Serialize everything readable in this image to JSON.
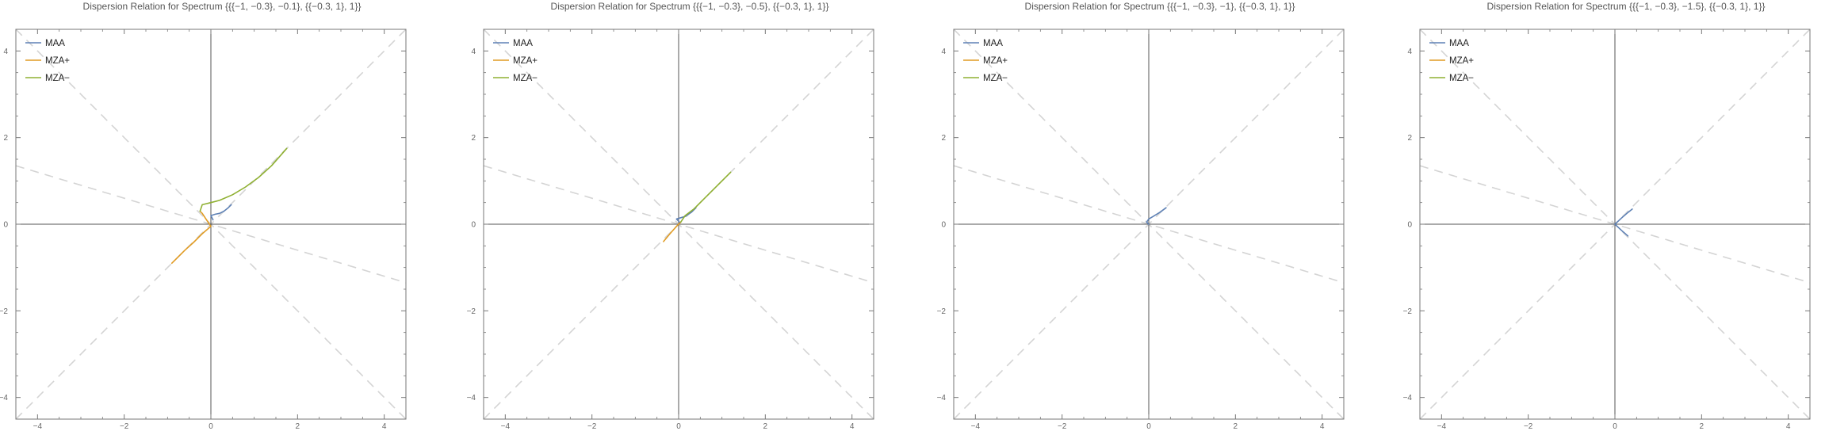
{
  "colors": {
    "MAA": "#5e81b5",
    "MZA+": "#e19c24",
    "MZA-": "#8fb032",
    "frame": "#777777",
    "axis": "#555555",
    "reference": "#d4d4d4"
  },
  "chart_data": [
    {
      "type": "line",
      "title": "Dispersion Relation for Spectrum {{{−1, −0.3}, −0.1}, {{−0.3, 1}, 1}}",
      "xlim": [
        -4.5,
        4.5
      ],
      "ylim": [
        -4.5,
        4.5
      ],
      "xticks": [
        -4,
        -2,
        0,
        2,
        4
      ],
      "yticks": [
        -4,
        -2,
        0,
        2,
        4
      ],
      "tick_labels": [
        "−4",
        "−2",
        "0",
        "2",
        "4"
      ],
      "grid": false,
      "legend_position": "top-left",
      "reference_lines": [
        {
          "style": "dashed",
          "slope": 1
        },
        {
          "style": "dashed",
          "slope": -1
        },
        {
          "style": "dashed",
          "slope": -0.3
        }
      ],
      "series": [
        {
          "name": "MAA",
          "color_key": "MAA",
          "points": [
            [
              0.05,
              0.1
            ],
            [
              0,
              0.2
            ],
            [
              0.1,
              0.23
            ],
            [
              0.2,
              0.25
            ],
            [
              0.3,
              0.3
            ],
            [
              0.4,
              0.38
            ],
            [
              0.47,
              0.45
            ]
          ]
        },
        {
          "name": "MZA+",
          "color_key": "MZA+",
          "points": [
            [
              -0.9,
              -0.9
            ],
            [
              -0.6,
              -0.6
            ],
            [
              -0.4,
              -0.42
            ],
            [
              -0.2,
              -0.22
            ],
            [
              0,
              -0.05
            ],
            [
              -0.1,
              0.1
            ],
            [
              -0.2,
              0.25
            ],
            [
              -0.25,
              0.3
            ]
          ]
        },
        {
          "name": "MZA−",
          "color_key": "MZA-",
          "points": [
            [
              -0.25,
              0.3
            ],
            [
              -0.2,
              0.45
            ],
            [
              0,
              0.5
            ],
            [
              0.2,
              0.55
            ],
            [
              0.5,
              0.68
            ],
            [
              0.8,
              0.86
            ],
            [
              1.1,
              1.08
            ],
            [
              1.4,
              1.35
            ],
            [
              1.75,
              1.75
            ]
          ]
        }
      ]
    },
    {
      "type": "line",
      "title": "Dispersion Relation for Spectrum {{{−1, −0.3}, −0.5}, {{−0.3, 1}, 1}}",
      "xlim": [
        -4.5,
        4.5
      ],
      "ylim": [
        -4.5,
        4.5
      ],
      "xticks": [
        -4,
        -2,
        0,
        2,
        4
      ],
      "yticks": [
        -4,
        -2,
        0,
        2,
        4
      ],
      "tick_labels": [
        "−4",
        "−2",
        "0",
        "2",
        "4"
      ],
      "grid": false,
      "legend_position": "top-left",
      "reference_lines": [
        {
          "style": "dashed",
          "slope": 1
        },
        {
          "style": "dashed",
          "slope": -1
        },
        {
          "style": "dashed",
          "slope": -0.3
        }
      ],
      "series": [
        {
          "name": "MAA",
          "color_key": "MAA",
          "points": [
            [
              0.02,
              0.05
            ],
            [
              -0.05,
              0.12
            ],
            [
              0.05,
              0.15
            ],
            [
              0.15,
              0.18
            ],
            [
              0.3,
              0.28
            ],
            [
              0.4,
              0.38
            ]
          ]
        },
        {
          "name": "MZA+",
          "color_key": "MZA+",
          "points": [
            [
              -0.35,
              -0.4
            ],
            [
              -0.2,
              -0.22
            ],
            [
              -0.05,
              -0.05
            ],
            [
              0.05,
              0.05
            ]
          ]
        },
        {
          "name": "MZA−",
          "color_key": "MZA-",
          "points": [
            [
              0.05,
              0.05
            ],
            [
              0.15,
              0.2
            ],
            [
              0.35,
              0.35
            ],
            [
              0.6,
              0.6
            ],
            [
              0.9,
              0.9
            ],
            [
              1.2,
              1.2
            ]
          ]
        }
      ]
    },
    {
      "type": "line",
      "title": "Dispersion Relation for Spectrum {{{−1, −0.3}, −1}, {{−0.3, 1}, 1}}",
      "xlim": [
        -4.5,
        4.5
      ],
      "ylim": [
        -4.5,
        4.5
      ],
      "xticks": [
        -4,
        -2,
        0,
        2,
        4
      ],
      "yticks": [
        -4,
        -2,
        0,
        2,
        4
      ],
      "tick_labels": [
        "−4",
        "−2",
        "0",
        "2",
        "4"
      ],
      "grid": false,
      "legend_position": "top-left",
      "reference_lines": [
        {
          "style": "dashed",
          "slope": 1
        },
        {
          "style": "dashed",
          "slope": -1
        },
        {
          "style": "dashed",
          "slope": -0.3
        }
      ],
      "series": [
        {
          "name": "MAA",
          "color_key": "MAA",
          "points": [
            [
              0,
              0
            ],
            [
              -0.05,
              0.05
            ],
            [
              0,
              0.12
            ],
            [
              0.1,
              0.18
            ],
            [
              0.25,
              0.27
            ],
            [
              0.4,
              0.38
            ]
          ]
        },
        {
          "name": "MZA+",
          "color_key": "MZA+",
          "points": []
        },
        {
          "name": "MZA−",
          "color_key": "MZA-",
          "points": []
        }
      ]
    },
    {
      "type": "line",
      "title": "Dispersion Relation for Spectrum {{{−1, −0.3}, −1.5}, {{−0.3, 1}, 1}}",
      "xlim": [
        -4.5,
        4.5
      ],
      "ylim": [
        -4.5,
        4.5
      ],
      "xticks": [
        -4,
        -2,
        0,
        2,
        4
      ],
      "yticks": [
        -4,
        -2,
        0,
        2,
        4
      ],
      "tick_labels": [
        "−4",
        "−2",
        "0",
        "2",
        "4"
      ],
      "grid": false,
      "legend_position": "top-left",
      "reference_lines": [
        {
          "style": "dashed",
          "slope": 1
        },
        {
          "style": "dashed",
          "slope": -1
        },
        {
          "style": "dashed",
          "slope": -0.3
        }
      ],
      "series": [
        {
          "name": "MAA",
          "color_key": "MAA",
          "points": [
            [
              0.3,
              -0.27
            ],
            [
              0.15,
              -0.14
            ],
            [
              0,
              0
            ],
            [
              0.15,
              0.14
            ],
            [
              0.3,
              0.27
            ],
            [
              0.4,
              0.35
            ]
          ]
        },
        {
          "name": "MZA+",
          "color_key": "MZA+",
          "points": []
        },
        {
          "name": "MZA−",
          "color_key": "MZA-",
          "points": []
        }
      ]
    }
  ]
}
